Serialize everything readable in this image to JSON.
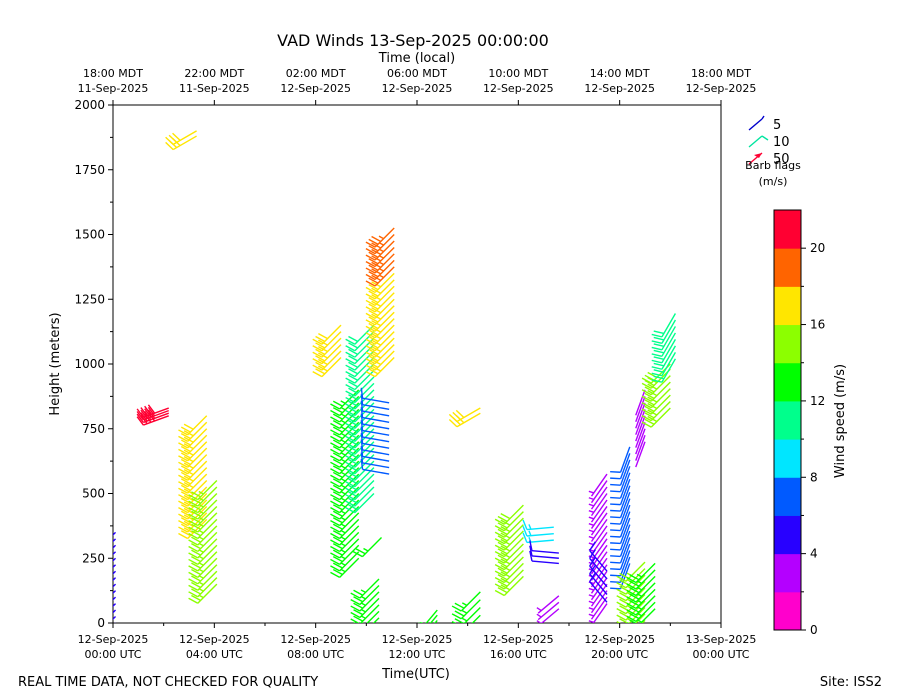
{
  "title": "VAD Winds 13-Sep-2025 00:00:00",
  "footer_left": "REAL TIME DATA, NOT CHECKED FOR QUALITY",
  "footer_right": "Site: ISS2",
  "chart_data": {
    "type": "wind-barb",
    "xlabel": "Time(UTC)",
    "ylabel": "Height (meters)",
    "top_axis_label": "Time (local)",
    "xlim_hours": [
      0,
      24
    ],
    "ylim": [
      0,
      2000
    ],
    "y_ticks": [
      0,
      250,
      500,
      750,
      1000,
      1250,
      1500,
      1750,
      2000
    ],
    "x_ticks": [
      {
        "hour": 0,
        "line1": "12-Sep-2025",
        "line2": "00:00 UTC"
      },
      {
        "hour": 4,
        "line1": "12-Sep-2025",
        "line2": "04:00 UTC"
      },
      {
        "hour": 8,
        "line1": "12-Sep-2025",
        "line2": "08:00 UTC"
      },
      {
        "hour": 12,
        "line1": "12-Sep-2025",
        "line2": "12:00 UTC"
      },
      {
        "hour": 16,
        "line1": "12-Sep-2025",
        "line2": "16:00 UTC"
      },
      {
        "hour": 20,
        "line1": "12-Sep-2025",
        "line2": "20:00 UTC"
      },
      {
        "hour": 24,
        "line1": "13-Sep-2025",
        "line2": "00:00 UTC"
      }
    ],
    "top_ticks": [
      {
        "hour": 0,
        "line1": "18:00 MDT",
        "line2": "11-Sep-2025"
      },
      {
        "hour": 4,
        "line1": "22:00 MDT",
        "line2": "11-Sep-2025"
      },
      {
        "hour": 8,
        "line1": "02:00 MDT",
        "line2": "12-Sep-2025"
      },
      {
        "hour": 12,
        "line1": "06:00 MDT",
        "line2": "12-Sep-2025"
      },
      {
        "hour": 16,
        "line1": "10:00 MDT",
        "line2": "12-Sep-2025"
      },
      {
        "hour": 20,
        "line1": "14:00 MDT",
        "line2": "12-Sep-2025"
      },
      {
        "hour": 24,
        "line1": "18:00 MDT",
        "line2": "12-Sep-2025"
      }
    ],
    "legend": {
      "title": "Barb flags",
      "units": "(m/s)",
      "entries": [
        {
          "label": "5",
          "color": "#0000cc"
        },
        {
          "label": "10",
          "color": "#00e5a0"
        },
        {
          "label": "50",
          "color": "#ff0033"
        }
      ]
    },
    "colorbar": {
      "label": "Wind speed (m/s)",
      "min": 0,
      "max": 22,
      "ticks": [
        "0",
        "4",
        "8",
        "12",
        "16",
        "20"
      ],
      "tick_values": [
        0,
        4,
        8,
        12,
        16,
        20
      ],
      "colors": [
        "#ff00cc",
        "#b400ff",
        "#2800ff",
        "#005aff",
        "#00e6ff",
        "#00ff8c",
        "#00ff00",
        "#8cff00",
        "#ffe600",
        "#ff6400",
        "#ff0032"
      ]
    },
    "series": [
      {
        "time": 0.1,
        "heights": [
          0,
          25,
          50,
          75,
          100,
          125,
          150,
          175,
          200,
          225,
          250,
          275,
          300,
          325,
          350
        ],
        "speed": 5.0,
        "direction": 225
      },
      {
        "time": 2.2,
        "heights": [
          800,
          810,
          820,
          830
        ],
        "speed": 22.0,
        "direction": 250
      },
      {
        "time": 3.3,
        "heights": [
          1880,
          1900
        ],
        "speed": 17.0,
        "direction": 240
      },
      {
        "time": 3.7,
        "heights": [
          400,
          425,
          450,
          475,
          500,
          525,
          550,
          575,
          600,
          625,
          650,
          675,
          700,
          725,
          750,
          775,
          800
        ],
        "speed": 17.0,
        "direction": 225
      },
      {
        "time": 4.1,
        "heights": [
          150,
          175,
          200,
          225,
          250,
          275,
          300,
          325,
          350,
          375,
          400,
          425,
          450,
          475,
          500,
          525,
          550
        ],
        "speed": 14.0,
        "direction": 225
      },
      {
        "time": 9.0,
        "heights": [
          1025,
          1050,
          1075,
          1100,
          1125,
          1150
        ],
        "speed": 17.0,
        "direction": 225
      },
      {
        "time": 9.7,
        "heights": [
          250,
          275,
          300,
          325,
          350,
          375,
          400,
          425,
          450,
          475,
          500,
          525,
          550,
          575,
          600,
          625,
          650,
          675,
          700,
          725,
          750,
          775,
          800,
          825,
          850,
          875,
          900
        ],
        "speed": 13.0,
        "direction": 225
      },
      {
        "time": 10.3,
        "heights": [
          500,
          525,
          550,
          575,
          600,
          625,
          650,
          675,
          700,
          725,
          750,
          775,
          800,
          825,
          850,
          875,
          900,
          925,
          950,
          975,
          1000,
          1025,
          1050,
          1075,
          1100,
          1125,
          1150
        ],
        "speed": 11.5,
        "direction": 225
      },
      {
        "time": 10.5,
        "heights": [
          20,
          45,
          70,
          95,
          120,
          145,
          170
        ],
        "speed": 13.0,
        "direction": 225
      },
      {
        "time": 10.6,
        "heights": [
          330
        ],
        "speed": 13.0,
        "direction": 225
      },
      {
        "time": 10.9,
        "heights": [
          575,
          600,
          625,
          650,
          675,
          700,
          725,
          750,
          775,
          800,
          825,
          850
        ],
        "speed": 7.0,
        "direction": 280
      },
      {
        "time": 11.1,
        "heights": [
          1025,
          1050,
          1075,
          1100,
          1125,
          1150,
          1175,
          1200,
          1225,
          1250,
          1275,
          1300,
          1325,
          1350
        ],
        "speed": 17.0,
        "direction": 225
      },
      {
        "time": 11.1,
        "heights": [
          1375,
          1400,
          1425,
          1450,
          1475,
          1500,
          1525
        ],
        "speed": 19.5,
        "direction": 225
      },
      {
        "time": 12.1,
        "heights": [
          0
        ],
        "speed": 13.0,
        "direction": 240
      },
      {
        "time": 12.8,
        "heights": [
          10,
          30,
          50
        ],
        "speed": 13.0,
        "direction": 220
      },
      {
        "time": 14.5,
        "heights": [
          810,
          830
        ],
        "speed": 17.0,
        "direction": 240
      },
      {
        "time": 14.5,
        "heights": [
          30,
          60,
          90,
          120
        ],
        "speed": 13.0,
        "direction": 225
      },
      {
        "time": 16.2,
        "heights": [
          180,
          205,
          230,
          255,
          280,
          305,
          330,
          355,
          380,
          405,
          430,
          455
        ],
        "speed": 15.0,
        "direction": 225
      },
      {
        "time": 17.4,
        "heights": [
          320,
          345,
          370
        ],
        "speed": 9.0,
        "direction": 265
      },
      {
        "time": 17.6,
        "heights": [
          55,
          80,
          105
        ],
        "speed": 3.0,
        "direction": 230
      },
      {
        "time": 17.6,
        "heights": [
          230,
          250,
          270
        ],
        "speed": 5.0,
        "direction": 275
      },
      {
        "time": 19.5,
        "heights": [
          75,
          100,
          125,
          150,
          175,
          200,
          225,
          250,
          275,
          300,
          325,
          350,
          375,
          400,
          425,
          450,
          475,
          500,
          525,
          550,
          575
        ],
        "speed": 3.5,
        "direction": 215
      },
      {
        "time": 19.5,
        "heights": [
          80,
          110,
          140,
          170,
          200
        ],
        "speed": 5.0,
        "direction": 320
      },
      {
        "time": 20.4,
        "heights": [
          230,
          255,
          280,
          305,
          330,
          355,
          380,
          405,
          430,
          455,
          480,
          505,
          530,
          555,
          580,
          605,
          630,
          655,
          680
        ],
        "speed": 6.0,
        "direction": 200
      },
      {
        "time": 21.0,
        "heights": [
          10,
          35,
          60,
          85,
          110,
          135,
          160,
          185,
          210,
          235
        ],
        "speed": 14.5,
        "direction": 225
      },
      {
        "time": 21.0,
        "heights": [
          700,
          725,
          750,
          775,
          800,
          825,
          850,
          875,
          900
        ],
        "speed": 2.0,
        "direction": 200
      },
      {
        "time": 21.4,
        "heights": [
          55,
          80,
          105,
          130,
          155,
          180,
          205,
          230
        ],
        "speed": 13.0,
        "direction": 225
      },
      {
        "time": 22.0,
        "heights": [
          830,
          855,
          880,
          905,
          930,
          955,
          980,
          1000
        ],
        "speed": 15.5,
        "direction": 225
      },
      {
        "time": 22.2,
        "heights": [
          1020,
          1045,
          1070,
          1095,
          1120,
          1145,
          1170,
          1195
        ],
        "speed": 11.0,
        "direction": 210
      }
    ]
  }
}
